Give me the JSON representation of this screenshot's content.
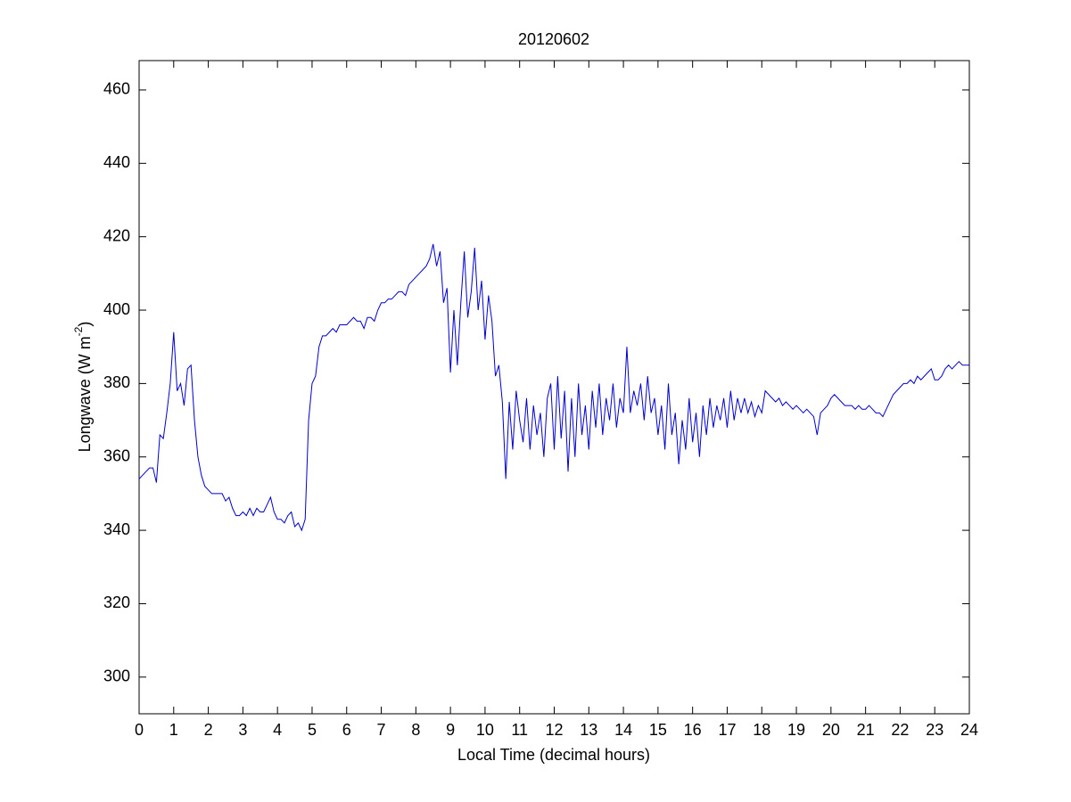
{
  "chart_data": {
    "type": "line",
    "title": "20120602",
    "xlabel": "Local Time (decimal hours)",
    "ylabel": [
      "Longwave (W m",
      "-2",
      ")"
    ],
    "xlim": [
      0,
      24
    ],
    "ylim": [
      290,
      468
    ],
    "xticks": [
      0,
      1,
      2,
      3,
      4,
      5,
      6,
      7,
      8,
      9,
      10,
      11,
      12,
      13,
      14,
      15,
      16,
      17,
      18,
      19,
      20,
      21,
      22,
      23,
      24
    ],
    "yticks": [
      300,
      320,
      340,
      360,
      380,
      400,
      420,
      440,
      460
    ],
    "grid": false,
    "x": [
      0,
      0.1,
      0.2,
      0.3,
      0.4,
      0.5,
      0.6,
      0.7,
      0.8,
      0.9,
      1,
      1.1,
      1.2,
      1.3,
      1.4,
      1.5,
      1.6,
      1.7,
      1.8,
      1.9,
      2,
      2.1,
      2.2,
      2.3,
      2.4,
      2.5,
      2.6,
      2.7,
      2.8,
      2.9,
      3,
      3.1,
      3.2,
      3.3,
      3.4,
      3.5,
      3.6,
      3.7,
      3.8,
      3.9,
      4,
      4.1,
      4.2,
      4.3,
      4.4,
      4.5,
      4.6,
      4.7,
      4.8,
      4.9,
      5,
      5.1,
      5.2,
      5.3,
      5.4,
      5.5,
      5.6,
      5.7,
      5.8,
      5.9,
      6,
      6.1,
      6.2,
      6.3,
      6.4,
      6.5,
      6.6,
      6.7,
      6.8,
      6.9,
      7,
      7.1,
      7.2,
      7.3,
      7.4,
      7.5,
      7.6,
      7.7,
      7.8,
      7.9,
      8,
      8.1,
      8.2,
      8.3,
      8.4,
      8.5,
      8.6,
      8.7,
      8.8,
      8.9,
      9,
      9.1,
      9.2,
      9.3,
      9.4,
      9.5,
      9.6,
      9.7,
      9.8,
      9.9,
      10,
      10.1,
      10.2,
      10.3,
      10.4,
      10.5,
      10.6,
      10.7,
      10.8,
      10.9,
      11,
      11.1,
      11.2,
      11.3,
      11.4,
      11.5,
      11.6,
      11.7,
      11.8,
      11.9,
      12,
      12.1,
      12.2,
      12.3,
      12.4,
      12.5,
      12.6,
      12.7,
      12.8,
      12.9,
      13,
      13.1,
      13.2,
      13.3,
      13.4,
      13.5,
      13.6,
      13.7,
      13.8,
      13.9,
      14,
      14.1,
      14.2,
      14.3,
      14.4,
      14.5,
      14.6,
      14.7,
      14.8,
      14.9,
      15,
      15.1,
      15.2,
      15.3,
      15.4,
      15.5,
      15.6,
      15.7,
      15.8,
      15.9,
      16,
      16.1,
      16.2,
      16.3,
      16.4,
      16.5,
      16.6,
      16.7,
      16.8,
      16.9,
      17,
      17.1,
      17.2,
      17.3,
      17.4,
      17.5,
      17.6,
      17.7,
      17.8,
      17.9,
      18,
      18.1,
      18.2,
      18.3,
      18.4,
      18.5,
      18.6,
      18.7,
      18.8,
      18.9,
      19,
      19.1,
      19.2,
      19.3,
      19.4,
      19.5,
      19.6,
      19.7,
      19.8,
      19.9,
      20,
      20.1,
      20.2,
      20.3,
      20.4,
      20.5,
      20.6,
      20.7,
      20.8,
      20.9,
      21,
      21.1,
      21.2,
      21.3,
      21.4,
      21.5,
      21.6,
      21.7,
      21.8,
      21.9,
      22,
      22.1,
      22.2,
      22.3,
      22.4,
      22.5,
      22.6,
      22.7,
      22.8,
      22.9,
      23,
      23.1,
      23.2,
      23.3,
      23.4,
      23.5,
      23.6,
      23.7,
      23.8,
      23.9,
      24
    ],
    "series": [
      {
        "color": "#0000cc",
        "values": [
          354,
          355,
          356,
          357,
          357,
          353,
          366,
          365,
          372,
          380,
          394,
          378,
          380,
          374,
          384,
          385,
          370,
          360,
          355,
          352,
          351,
          350,
          350,
          350,
          350,
          348,
          349,
          346,
          344,
          344,
          345,
          344,
          346,
          344,
          346,
          345,
          345,
          347,
          349,
          345,
          343,
          343,
          342,
          344,
          345,
          341,
          342,
          340,
          343,
          370,
          380,
          382,
          390,
          393,
          393,
          394,
          395,
          394,
          396,
          396,
          396,
          397,
          398,
          397,
          397,
          395,
          398,
          398,
          397,
          400,
          402,
          402,
          403,
          403,
          404,
          405,
          405,
          404,
          407,
          408,
          409,
          410,
          411,
          412,
          414,
          418,
          412,
          416,
          402,
          406,
          383,
          400,
          385,
          402,
          416,
          398,
          405,
          417,
          400,
          408,
          392,
          404,
          397,
          382,
          385,
          375,
          354,
          375,
          362,
          378,
          370,
          364,
          376,
          362,
          374,
          366,
          372,
          360,
          376,
          380,
          362,
          382,
          365,
          378,
          356,
          376,
          360,
          380,
          366,
          374,
          362,
          378,
          368,
          380,
          366,
          376,
          370,
          380,
          368,
          376,
          372,
          390,
          372,
          378,
          374,
          380,
          370,
          382,
          372,
          376,
          366,
          374,
          362,
          380,
          366,
          372,
          358,
          370,
          362,
          376,
          364,
          372,
          360,
          374,
          366,
          376,
          368,
          374,
          370,
          376,
          368,
          378,
          370,
          376,
          372,
          376,
          372,
          375,
          371,
          374,
          372,
          378,
          377,
          376,
          375,
          376,
          374,
          375,
          374,
          373,
          374,
          373,
          372,
          373,
          372,
          371,
          366,
          372,
          373,
          374,
          376,
          377,
          376,
          375,
          374,
          374,
          374,
          373,
          374,
          373,
          373,
          374,
          373,
          372,
          372,
          371,
          373,
          375,
          377,
          378,
          379,
          380,
          380,
          381,
          380,
          382,
          381,
          382,
          383,
          384,
          381,
          381,
          382,
          384,
          385,
          384,
          385,
          386,
          385,
          385,
          385
        ]
      }
    ]
  }
}
